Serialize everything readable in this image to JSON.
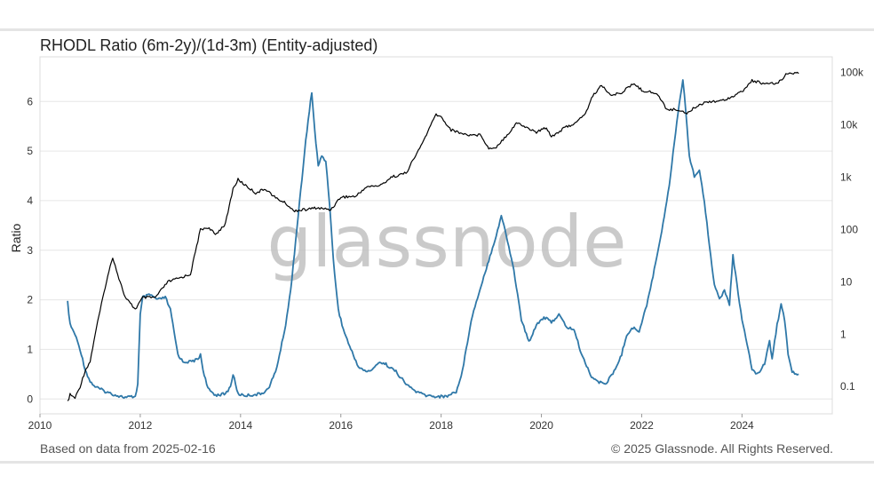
{
  "header": {
    "title": "RHODL Ratio (6m-2y)/(1d-3m) (Entity-adjusted)"
  },
  "footer": {
    "source_note": "Based on data from 2025-02-16",
    "copyright": "© 2025 Glassnode. All Rights Reserved."
  },
  "watermark": "glassnode",
  "colors": {
    "ratio": "#2f78a8",
    "price": "#000000",
    "grid": "#e6e6e6",
    "background": "#ffffff"
  },
  "chart_data": {
    "type": "line",
    "title": "RHODL Ratio (6m-2y)/(1d-3m) (Entity-adjusted)",
    "xlabel": "",
    "ylabel": "Ratio",
    "xlim": [
      2010.0,
      2025.8
    ],
    "ylim": [
      -0.3,
      6.9
    ],
    "y2lim": [
      0.03,
      200000
    ],
    "y2scale": "log",
    "x_ticks": [
      "2010",
      "2012",
      "2014",
      "2016",
      "2018",
      "2020",
      "2022",
      "2024"
    ],
    "x_tick_values": [
      2010,
      2012,
      2014,
      2016,
      2018,
      2020,
      2022,
      2024
    ],
    "y_ticks": [
      "0",
      "1",
      "2",
      "3",
      "4",
      "5",
      "6"
    ],
    "y_tick_values": [
      0,
      1,
      2,
      3,
      4,
      5,
      6
    ],
    "y2_ticks": [
      "0.1",
      "1",
      "10",
      "100",
      "1k",
      "10k",
      "100k"
    ],
    "y2_tick_values": [
      0.1,
      1,
      10,
      100,
      1000,
      10000,
      100000
    ],
    "grid": "horizontal",
    "series": [
      {
        "axis": "left",
        "color": "#2f78a8",
        "points": [
          [
            2010.55,
            1.95
          ],
          [
            2010.6,
            1.5
          ],
          [
            2010.7,
            1.3
          ],
          [
            2010.8,
            1.0
          ],
          [
            2010.9,
            0.6
          ],
          [
            2011.0,
            0.35
          ],
          [
            2011.1,
            0.25
          ],
          [
            2011.3,
            0.15
          ],
          [
            2011.5,
            0.08
          ],
          [
            2011.7,
            0.03
          ],
          [
            2011.9,
            0.05
          ],
          [
            2011.95,
            0.3
          ],
          [
            2012.0,
            1.7
          ],
          [
            2012.05,
            2.05
          ],
          [
            2012.2,
            2.1
          ],
          [
            2012.35,
            2.0
          ],
          [
            2012.5,
            2.05
          ],
          [
            2012.6,
            1.8
          ],
          [
            2012.75,
            0.9
          ],
          [
            2012.85,
            0.75
          ],
          [
            2013.0,
            0.75
          ],
          [
            2013.15,
            0.8
          ],
          [
            2013.2,
            0.9
          ],
          [
            2013.25,
            0.6
          ],
          [
            2013.35,
            0.2
          ],
          [
            2013.5,
            0.08
          ],
          [
            2013.7,
            0.1
          ],
          [
            2013.8,
            0.25
          ],
          [
            2013.85,
            0.5
          ],
          [
            2013.95,
            0.1
          ],
          [
            2014.1,
            0.07
          ],
          [
            2014.4,
            0.1
          ],
          [
            2014.55,
            0.2
          ],
          [
            2014.7,
            0.55
          ],
          [
            2014.8,
            1.0
          ],
          [
            2014.9,
            1.5
          ],
          [
            2015.0,
            2.2
          ],
          [
            2015.1,
            3.2
          ],
          [
            2015.2,
            4.2
          ],
          [
            2015.3,
            5.2
          ],
          [
            2015.42,
            6.2
          ],
          [
            2015.48,
            5.4
          ],
          [
            2015.55,
            4.7
          ],
          [
            2015.62,
            4.9
          ],
          [
            2015.7,
            4.8
          ],
          [
            2015.78,
            3.9
          ],
          [
            2015.85,
            2.8
          ],
          [
            2015.95,
            1.8
          ],
          [
            2016.05,
            1.4
          ],
          [
            2016.2,
            1.0
          ],
          [
            2016.35,
            0.65
          ],
          [
            2016.5,
            0.55
          ],
          [
            2016.65,
            0.6
          ],
          [
            2016.75,
            0.75
          ],
          [
            2016.9,
            0.7
          ],
          [
            2017.1,
            0.55
          ],
          [
            2017.3,
            0.3
          ],
          [
            2017.5,
            0.15
          ],
          [
            2017.7,
            0.07
          ],
          [
            2017.9,
            0.05
          ],
          [
            2018.1,
            0.05
          ],
          [
            2018.3,
            0.15
          ],
          [
            2018.4,
            0.45
          ],
          [
            2018.5,
            1.0
          ],
          [
            2018.6,
            1.6
          ],
          [
            2018.8,
            2.3
          ],
          [
            2018.95,
            2.8
          ],
          [
            2019.1,
            3.3
          ],
          [
            2019.2,
            3.7
          ],
          [
            2019.3,
            3.3
          ],
          [
            2019.45,
            2.6
          ],
          [
            2019.6,
            1.6
          ],
          [
            2019.75,
            1.15
          ],
          [
            2019.9,
            1.5
          ],
          [
            2020.05,
            1.65
          ],
          [
            2020.2,
            1.55
          ],
          [
            2020.35,
            1.7
          ],
          [
            2020.5,
            1.45
          ],
          [
            2020.65,
            1.4
          ],
          [
            2020.8,
            0.9
          ],
          [
            2021.0,
            0.45
          ],
          [
            2021.15,
            0.33
          ],
          [
            2021.3,
            0.33
          ],
          [
            2021.45,
            0.55
          ],
          [
            2021.6,
            0.9
          ],
          [
            2021.7,
            1.3
          ],
          [
            2021.85,
            1.45
          ],
          [
            2021.95,
            1.35
          ],
          [
            2022.1,
            1.9
          ],
          [
            2022.25,
            2.6
          ],
          [
            2022.4,
            3.4
          ],
          [
            2022.55,
            4.3
          ],
          [
            2022.7,
            5.6
          ],
          [
            2022.82,
            6.45
          ],
          [
            2022.88,
            5.8
          ],
          [
            2022.95,
            4.9
          ],
          [
            2023.05,
            4.5
          ],
          [
            2023.15,
            4.6
          ],
          [
            2023.25,
            4.0
          ],
          [
            2023.35,
            3.1
          ],
          [
            2023.45,
            2.3
          ],
          [
            2023.55,
            2.0
          ],
          [
            2023.65,
            2.2
          ],
          [
            2023.75,
            1.9
          ],
          [
            2023.82,
            2.9
          ],
          [
            2023.9,
            2.3
          ],
          [
            2024.0,
            1.6
          ],
          [
            2024.1,
            1.1
          ],
          [
            2024.2,
            0.6
          ],
          [
            2024.3,
            0.5
          ],
          [
            2024.45,
            0.7
          ],
          [
            2024.55,
            1.2
          ],
          [
            2024.6,
            0.8
          ],
          [
            2024.7,
            1.5
          ],
          [
            2024.78,
            1.9
          ],
          [
            2024.85,
            1.6
          ],
          [
            2024.92,
            0.9
          ],
          [
            2025.0,
            0.55
          ],
          [
            2025.1,
            0.48
          ],
          [
            2025.13,
            0.5
          ]
        ]
      },
      {
        "axis": "right",
        "color": "#000000",
        "points": [
          [
            2010.55,
            0.05
          ],
          [
            2010.6,
            0.07
          ],
          [
            2010.7,
            0.06
          ],
          [
            2010.8,
            0.1
          ],
          [
            2010.9,
            0.2
          ],
          [
            2011.0,
            0.3
          ],
          [
            2011.1,
            1.0
          ],
          [
            2011.3,
            8.0
          ],
          [
            2011.45,
            30.0
          ],
          [
            2011.55,
            14.0
          ],
          [
            2011.7,
            5.0
          ],
          [
            2011.9,
            3.0
          ],
          [
            2012.05,
            5.0
          ],
          [
            2012.3,
            5.0
          ],
          [
            2012.55,
            10.0
          ],
          [
            2012.8,
            12.0
          ],
          [
            2013.0,
            14.0
          ],
          [
            2013.2,
            100.0
          ],
          [
            2013.35,
            110.0
          ],
          [
            2013.5,
            80.0
          ],
          [
            2013.7,
            130.0
          ],
          [
            2013.85,
            600.0
          ],
          [
            2013.95,
            900.0
          ],
          [
            2014.1,
            700.0
          ],
          [
            2014.3,
            500.0
          ],
          [
            2014.5,
            600.0
          ],
          [
            2014.7,
            400.0
          ],
          [
            2014.9,
            320.0
          ],
          [
            2015.05,
            230.0
          ],
          [
            2015.3,
            240.0
          ],
          [
            2015.5,
            260.0
          ],
          [
            2015.8,
            240.0
          ],
          [
            2016.0,
            420.0
          ],
          [
            2016.3,
            430.0
          ],
          [
            2016.5,
            650.0
          ],
          [
            2016.8,
            700.0
          ],
          [
            2017.0,
            1000.0
          ],
          [
            2017.3,
            1200.0
          ],
          [
            2017.6,
            4000.0
          ],
          [
            2017.9,
            16000.0
          ],
          [
            2018.0,
            14000.0
          ],
          [
            2018.2,
            8000.0
          ],
          [
            2018.5,
            6500.0
          ],
          [
            2018.8,
            6400.0
          ],
          [
            2018.95,
            3500.0
          ],
          [
            2019.1,
            3800.0
          ],
          [
            2019.4,
            8000.0
          ],
          [
            2019.5,
            11000.0
          ],
          [
            2019.7,
            9000.0
          ],
          [
            2019.9,
            7200.0
          ],
          [
            2020.1,
            9000.0
          ],
          [
            2020.2,
            6000.0
          ],
          [
            2020.5,
            9200.0
          ],
          [
            2020.7,
            11000.0
          ],
          [
            2020.9,
            18000.0
          ],
          [
            2021.0,
            33000.0
          ],
          [
            2021.2,
            58000.0
          ],
          [
            2021.4,
            36000.0
          ],
          [
            2021.6,
            42000.0
          ],
          [
            2021.85,
            62000.0
          ],
          [
            2022.0,
            46000.0
          ],
          [
            2022.3,
            40000.0
          ],
          [
            2022.5,
            20000.0
          ],
          [
            2022.8,
            19000.0
          ],
          [
            2022.9,
            16500.0
          ],
          [
            2023.1,
            23000.0
          ],
          [
            2023.3,
            28000.0
          ],
          [
            2023.6,
            29000.0
          ],
          [
            2023.8,
            35000.0
          ],
          [
            2024.0,
            43000.0
          ],
          [
            2024.2,
            70000.0
          ],
          [
            2024.5,
            60000.0
          ],
          [
            2024.7,
            62000.0
          ],
          [
            2024.9,
            95000.0
          ],
          [
            2025.0,
            100000.0
          ],
          [
            2025.13,
            96000.0
          ]
        ]
      }
    ]
  }
}
